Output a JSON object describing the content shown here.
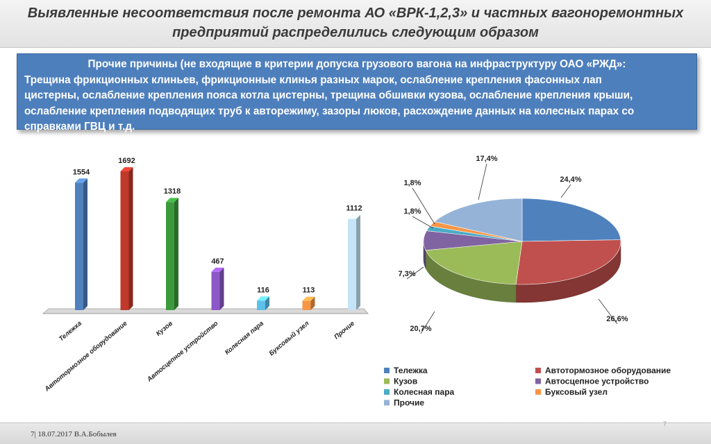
{
  "title": {
    "line1": "Выявленные несоответствия после ремонта АО «ВРК-1,2,3» и частных вагоноремонтных",
    "line2": "предприятий распределились следующим образом"
  },
  "info": {
    "header": "Прочие причины (не входящие в критерии допуска грузового вагона на инфраструктуру ОАО «РЖД»:",
    "lines": [
      "Трещина фрикционных клиньев, фрикционные клинья разных марок, ослабление крепления  фасонных лап",
      "цистерны, ослабление крепления пояса котла цистерны, трещина обшивки кузова, ослабление крепления крыши,",
      "ослабление крепления подводящих труб к авторежиму, зазоры люков, расхождение данных на колесных парах со",
      "справками ГВЦ и т.д."
    ]
  },
  "footer": {
    "text": "7| 18.07.2017 В.А.Бобылев",
    "page_mark": "7"
  },
  "chart_data": [
    {
      "type": "bar",
      "categories": [
        "Тележка",
        "Автотормозное оборудование",
        "Кузов",
        "Автосцепное устройство",
        "Колесная пара",
        "Буксовый узел",
        "Прочие"
      ],
      "values": [
        1554,
        1692,
        1318,
        467,
        116,
        113,
        1112
      ],
      "data_labels": [
        "1554",
        "1692",
        "1318",
        "467",
        "116",
        "113",
        "1112"
      ],
      "colors": [
        "#4f81bd",
        "#c0392b",
        "#3c9a3c",
        "#8e57c9",
        "#5bc0ea",
        "#f79646",
        "#c6e4f7"
      ],
      "ylim": [
        0,
        1800
      ],
      "grid": false,
      "legend": "none"
    },
    {
      "type": "pie",
      "labels": [
        "Тележка",
        "Автотормозное оборудование",
        "Кузов",
        "Автосцепное устройство",
        "Колесная пара",
        "Буксовый узел",
        "Прочие"
      ],
      "values": [
        24.4,
        26.6,
        20.7,
        7.3,
        1.8,
        1.8,
        17.4
      ],
      "data_labels": [
        "24,4%",
        "26,6%",
        "20,7%",
        "7,3%",
        "1,8%",
        "1,8%",
        "17,4%"
      ],
      "colors": [
        "#4f81bd",
        "#c0504d",
        "#9bbb59",
        "#8064a2",
        "#4bacc6",
        "#f79646",
        "#95b3d7"
      ],
      "legend": "bottom",
      "three_d": true
    }
  ]
}
